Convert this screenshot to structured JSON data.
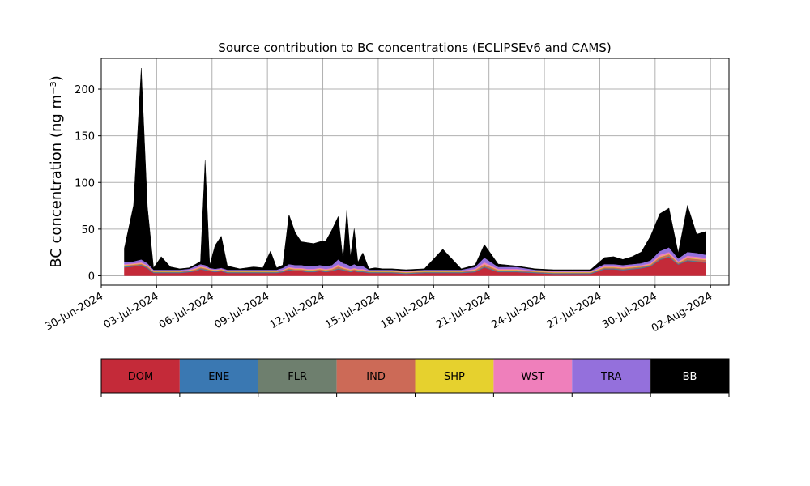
{
  "chart_data": {
    "type": "area",
    "stacked": true,
    "title": "Source contribution to BC concentrations (ECLIPSEv6 and CAMS)",
    "ylabel": "BC concentration (ng m⁻³)",
    "xlabel": "",
    "x_ticks": [
      "30-Jun-2024",
      "03-Jul-2024",
      "06-Jul-2024",
      "09-Jul-2024",
      "12-Jul-2024",
      "15-Jul-2024",
      "18-Jul-2024",
      "21-Jul-2024",
      "24-Jul-2024",
      "27-Jul-2024",
      "30-Jul-2024",
      "02-Aug-2024"
    ],
    "y_ticks": [
      0,
      50,
      100,
      150,
      200
    ],
    "xlim": [
      "2024-06-30",
      "2024-08-03"
    ],
    "ylim": [
      -10,
      233
    ],
    "grid": true,
    "legend_placement": "bottom colorbar",
    "colors": {
      "DOM": "#c42a39",
      "ENE": "#3a78b2",
      "FLR": "#6e7f6e",
      "IND": "#cc6a57",
      "SHP": "#e6d12e",
      "WST": "#ef7fbb",
      "TRA": "#9470dc",
      "BB": "#000000"
    },
    "x": [
      "2024-07-01",
      "2024-07-01",
      "2024-07-02",
      "2024-07-02",
      "2024-07-02",
      "2024-07-03",
      "2024-07-03",
      "2024-07-04",
      "2024-07-04",
      "2024-07-05",
      "2024-07-05",
      "2024-07-05",
      "2024-07-05",
      "2024-07-06",
      "2024-07-06",
      "2024-07-06",
      "2024-07-07",
      "2024-07-08",
      "2024-07-08",
      "2024-07-09",
      "2024-07-09",
      "2024-07-09",
      "2024-07-10",
      "2024-07-10",
      "2024-07-10",
      "2024-07-11",
      "2024-07-11",
      "2024-07-11",
      "2024-07-12",
      "2024-07-12",
      "2024-07-12",
      "2024-07-13",
      "2024-07-13",
      "2024-07-13",
      "2024-07-13",
      "2024-07-13",
      "2024-07-14",
      "2024-07-14",
      "2024-07-14",
      "2024-07-15",
      "2024-07-15",
      "2024-07-16",
      "2024-07-17",
      "2024-07-18",
      "2024-07-19",
      "2024-07-20",
      "2024-07-20",
      "2024-07-21",
      "2024-07-22",
      "2024-07-23",
      "2024-07-24",
      "2024-07-25",
      "2024-07-26",
      "2024-07-27",
      "2024-07-27",
      "2024-07-28",
      "2024-07-28",
      "2024-07-29",
      "2024-07-29",
      "2024-07-30",
      "2024-07-30",
      "2024-07-31",
      "2024-07-31",
      "2024-08-01",
      "2024-08-01"
    ],
    "series": [
      {
        "name": "DOM",
        "values": [
          9,
          10,
          11,
          8,
          3,
          3,
          3,
          3,
          4,
          5,
          7,
          6,
          5,
          4,
          5,
          3,
          3,
          3,
          3,
          3,
          3,
          4,
          6,
          5,
          5,
          4,
          4,
          5,
          4,
          5,
          7,
          6,
          5,
          4,
          5,
          4,
          4,
          3,
          3,
          3,
          3,
          2,
          3,
          3,
          3,
          4,
          9,
          4,
          4,
          3,
          2,
          2,
          2,
          7,
          7,
          6,
          7,
          8,
          10,
          17,
          20,
          12,
          16,
          15,
          14
        ]
      },
      {
        "name": "ENE",
        "values": [
          0.5,
          0.5,
          0.5,
          0.5,
          0.5,
          0.5,
          0.5,
          0.5,
          0.5,
          0.5,
          0.5,
          0.5,
          0.5,
          0.5,
          0.5,
          0.5,
          0.5,
          0.5,
          0.5,
          0.5,
          0.5,
          0.5,
          0.5,
          0.5,
          0.5,
          0.5,
          0.5,
          0.5,
          0.5,
          0.5,
          0.5,
          0.5,
          0.5,
          0.5,
          0.5,
          0.5,
          0.5,
          0.5,
          0.5,
          0.5,
          0.5,
          0.5,
          0.5,
          0.5,
          0.5,
          0.5,
          0.5,
          0.5,
          0.5,
          0.5,
          0.5,
          0.5,
          0.5,
          0.5,
          0.5,
          0.5,
          0.5,
          0.5,
          0.5,
          0.5,
          0.5,
          0.5,
          0.5,
          0.5,
          0.5
        ]
      },
      {
        "name": "FLR",
        "values": [
          0.5,
          0.5,
          0.5,
          0.5,
          0.5,
          0.5,
          0.5,
          0.5,
          0.5,
          0.5,
          0.5,
          0.5,
          0.5,
          0.5,
          0.5,
          0.5,
          0.5,
          0.5,
          0.5,
          0.5,
          0.5,
          0.5,
          0.5,
          0.5,
          0.5,
          0.5,
          0.5,
          0.5,
          0.5,
          0.5,
          0.5,
          0.5,
          0.5,
          0.5,
          0.5,
          0.5,
          0.5,
          0.5,
          0.5,
          0.5,
          0.5,
          0.5,
          0.5,
          0.5,
          0.5,
          0.5,
          0.5,
          0.5,
          0.5,
          0.5,
          0.5,
          0.5,
          0.5,
          0.5,
          0.5,
          0.5,
          0.5,
          0.5,
          0.5,
          0.5,
          0.5,
          0.5,
          0.5,
          0.5,
          0.5
        ]
      },
      {
        "name": "IND",
        "values": [
          1,
          1,
          1,
          1,
          0.5,
          0.5,
          0.5,
          0.5,
          0.5,
          1,
          1,
          1,
          0.5,
          0.5,
          0.5,
          0.5,
          0.5,
          0.5,
          0.5,
          0.5,
          0.5,
          0.5,
          1,
          1,
          1,
          1,
          1,
          1,
          1,
          1,
          2,
          1,
          1,
          1,
          1,
          1,
          1,
          0.5,
          0.5,
          0.5,
          0.5,
          0.5,
          0.5,
          0.5,
          0.5,
          1,
          2,
          1,
          1,
          0.5,
          0.5,
          0.5,
          0.5,
          1,
          1,
          1,
          1,
          1,
          1,
          2,
          2,
          1,
          2,
          2,
          2
        ]
      },
      {
        "name": "SHP",
        "values": [
          0.5,
          0.5,
          0.5,
          0.5,
          0.5,
          0.5,
          0.5,
          0.5,
          0.5,
          0.5,
          0.5,
          0.5,
          0.5,
          0.5,
          0.5,
          0.5,
          0.5,
          0.5,
          0.5,
          0.5,
          0.5,
          0.5,
          0.5,
          0.5,
          0.5,
          0.5,
          0.5,
          0.5,
          0.5,
          0.5,
          0.5,
          0.5,
          0.5,
          0.5,
          0.5,
          0.5,
          0.5,
          0.5,
          0.5,
          0.5,
          0.5,
          0.5,
          0.5,
          0.5,
          0.5,
          0.5,
          0.5,
          0.5,
          0.5,
          0.5,
          0.5,
          0.5,
          0.5,
          0.5,
          0.5,
          0.5,
          0.5,
          0.5,
          0.5,
          0.5,
          0.5,
          0.5,
          0.5,
          0.5,
          0.5
        ]
      },
      {
        "name": "WST",
        "values": [
          1,
          1,
          1,
          1,
          0.5,
          0.5,
          0.5,
          0.5,
          0.5,
          1,
          1,
          1,
          0.5,
          0.5,
          0.5,
          0.5,
          0.5,
          0.5,
          0.5,
          0.5,
          0.5,
          0.5,
          1,
          1,
          1,
          1,
          1,
          1,
          1,
          1,
          2,
          1,
          1,
          1,
          1,
          1,
          1,
          0.5,
          0.5,
          0.5,
          0.5,
          0.5,
          0.5,
          0.5,
          0.5,
          1,
          2,
          1,
          1,
          0.5,
          0.5,
          0.5,
          0.5,
          1,
          1,
          1,
          1,
          1,
          1,
          2,
          2,
          1,
          2,
          2,
          2
        ]
      },
      {
        "name": "TRA",
        "values": [
          2,
          2,
          3,
          2,
          1,
          1,
          1,
          1,
          1,
          2,
          2,
          2,
          1,
          1,
          1,
          1,
          1,
          1,
          1,
          1,
          1,
          2,
          3,
          3,
          3,
          3,
          3,
          3,
          3,
          3,
          5,
          4,
          4,
          3,
          4,
          3,
          3,
          1,
          1,
          1,
          1,
          1,
          1,
          1,
          1,
          2,
          5,
          2,
          2,
          1,
          1,
          1,
          1,
          2,
          2,
          2,
          2,
          2,
          3,
          4,
          5,
          3,
          4,
          4,
          3
        ]
      },
      {
        "name": "BB",
        "values": [
          15,
          60,
          205,
          60,
          2,
          14,
          3,
          1,
          1,
          2,
          3,
          112,
          3,
          25,
          34,
          4,
          1,
          3,
          2,
          20,
          2,
          3,
          53,
          35,
          25,
          25,
          24,
          25,
          27,
          38,
          46,
          3,
          58,
          10,
          38,
          4,
          14,
          1,
          2,
          1,
          1,
          1,
          1,
          22,
          1,
          2,
          14,
          3,
          1,
          1,
          1,
          1,
          1,
          7,
          8,
          6,
          8,
          12,
          26,
          40,
          42,
          6,
          50,
          20,
          25
        ]
      }
    ]
  },
  "legend": {
    "items": [
      {
        "label": "DOM",
        "color": "#c42a39",
        "text_color": "#000000"
      },
      {
        "label": "ENE",
        "color": "#3a78b2",
        "text_color": "#000000"
      },
      {
        "label": "FLR",
        "color": "#6e7f6e",
        "text_color": "#000000"
      },
      {
        "label": "IND",
        "color": "#cc6a57",
        "text_color": "#000000"
      },
      {
        "label": "SHP",
        "color": "#e6d12e",
        "text_color": "#000000"
      },
      {
        "label": "WST",
        "color": "#ef7fbb",
        "text_color": "#000000"
      },
      {
        "label": "TRA",
        "color": "#9470dc",
        "text_color": "#000000"
      },
      {
        "label": "BB",
        "color": "#000000",
        "text_color": "#ffffff"
      }
    ]
  }
}
